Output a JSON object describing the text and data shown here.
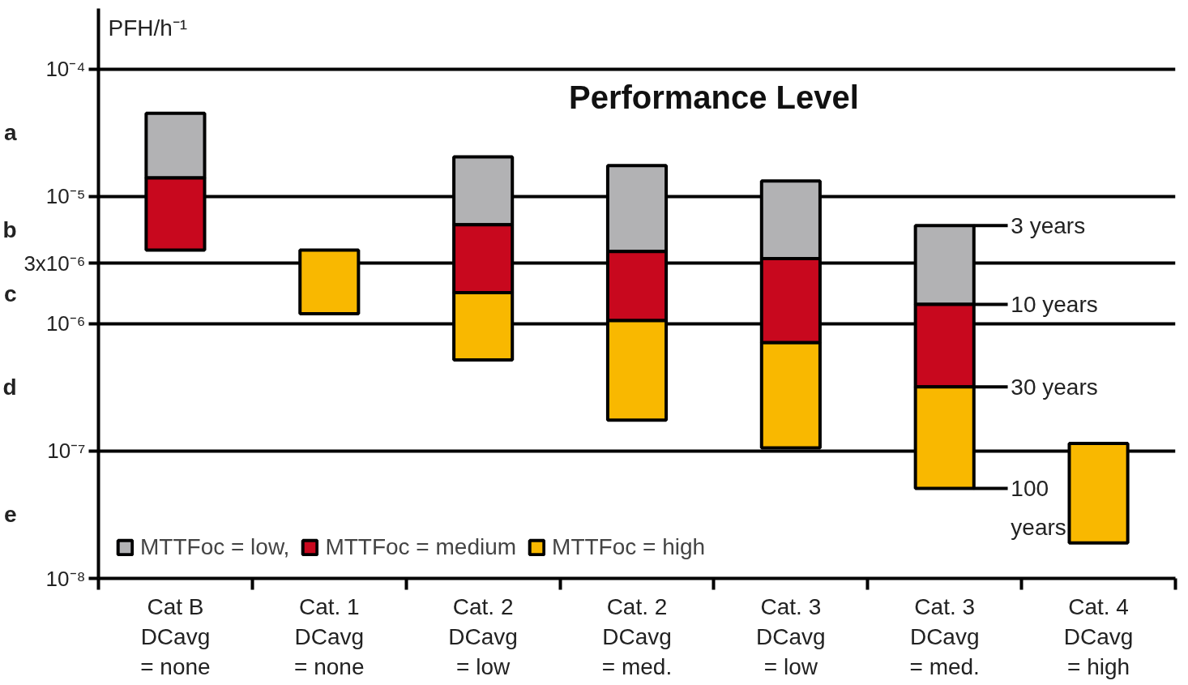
{
  "chart_data": {
    "type": "bar",
    "title": "Performance Level",
    "ylabel": "PFH/h⁻¹",
    "categories": [
      "Cat B\nDCavg\n= none",
      "Cat. 1\nDCavg\n= none",
      "Cat. 2\nDCavg\n= low",
      "Cat. 2\nDCavg\n= med.",
      "Cat. 3\nDCavg\n= low",
      "Cat. 3\nDCavg\n= med.",
      "Cat. 4\nDCavg\n= high"
    ],
    "log": true,
    "ylim": [
      1e-08,
      0.0003
    ],
    "yticks": [
      {
        "value": 1e-08,
        "label": "10⁻⁸"
      },
      {
        "value": 1e-07,
        "label": "10⁻⁷"
      },
      {
        "value": 1e-06,
        "label": "10⁻⁶"
      },
      {
        "value": 3e-06,
        "label": "3x10⁻⁶"
      },
      {
        "value": 1e-05,
        "label": "10⁻⁵"
      },
      {
        "value": 0.0001,
        "label": "10⁻⁴"
      }
    ],
    "grid": "y",
    "legend": "bottom left",
    "series": [
      {
        "name": "MTTFoc = low,",
        "color": "#b2b2b4",
        "base": [
          1.4e-05,
          null,
          6e-06,
          3.7e-06,
          3.25e-06,
          1.42e-06,
          null
        ],
        "values": [
          3.1e-05,
          null,
          1.45e-05,
          1.38e-05,
          1e-05,
          4.5e-06,
          null
        ]
      },
      {
        "name": "MTTFoc = medium",
        "color": "#c8081e",
        "base": [
          3.8e-06,
          null,
          1.76e-06,
          1.06e-06,
          7.1e-07,
          3.2e-07,
          null
        ],
        "values": [
          1.02e-05,
          null,
          4.24e-06,
          2.64e-06,
          2.54e-06,
          1.1e-06,
          null
        ]
      },
      {
        "name": "MTTFoc = high",
        "color": "#f9b800",
        "base": [
          null,
          1.2e-06,
          5.2e-07,
          1.75e-07,
          1.06e-07,
          5.1e-08,
          1.9e-08
        ],
        "values": [
          null,
          2.6e-06,
          1.24e-06,
          8.85e-07,
          6.04e-07,
          2.69e-07,
          9.6e-08
        ]
      }
    ],
    "annotations": [
      "a",
      "b",
      "c",
      "d",
      "e",
      {
        "text": "3 years",
        "x": "Cat. 3\nDCavg\n= med.",
        "y": 5.92e-06
      },
      {
        "text": "10 years",
        "x": "Cat. 3\nDCavg\n= med.",
        "y": 1.42e-06
      },
      {
        "text": "30 years",
        "x": "Cat. 3\nDCavg\n= med.",
        "y": 3.2e-07
      },
      {
        "text": "100\nyears",
        "x": "Cat. 3\nDCavg\n= med.",
        "y": 5.1e-08
      }
    ]
  }
}
